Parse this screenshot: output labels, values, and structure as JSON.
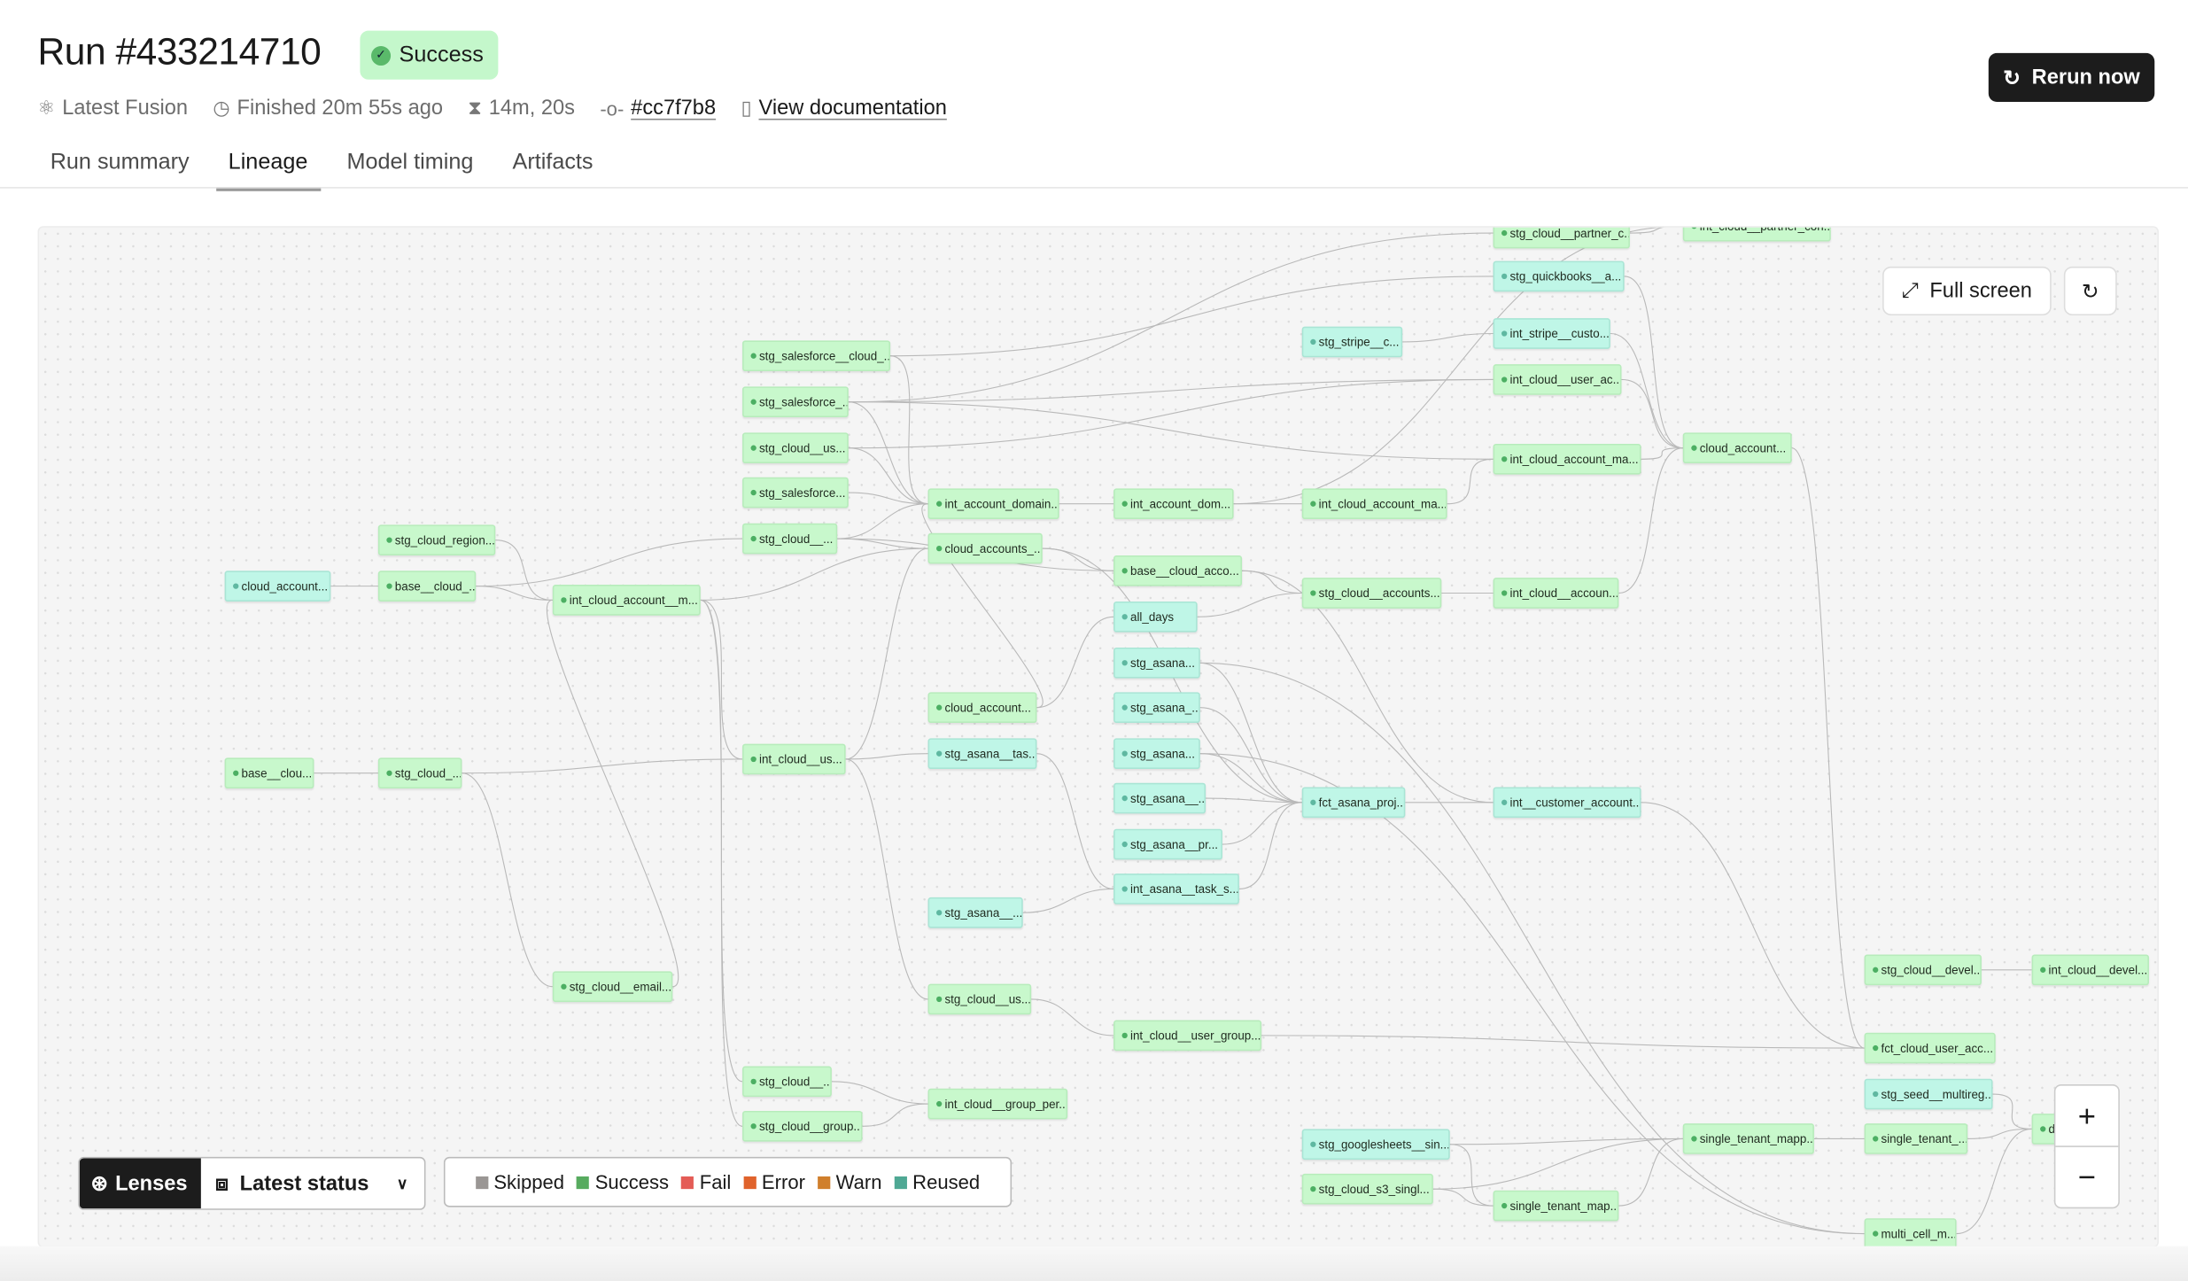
{
  "header": {
    "title": "Run #433214710",
    "status": "Success",
    "meta": {
      "environment": "Latest Fusion",
      "finished": "Finished 20m 55s ago",
      "duration": "14m, 20s",
      "commit": "#cc7f7b8",
      "docs": "View documentation"
    },
    "rerun_label": "Rerun now"
  },
  "tabs": [
    {
      "label": "Run summary",
      "active": false
    },
    {
      "label": "Lineage",
      "active": true
    },
    {
      "label": "Model timing",
      "active": false
    },
    {
      "label": "Artifacts",
      "active": false
    }
  ],
  "graph": {
    "fullscreen_label": "Full screen",
    "nodes": [
      {
        "id": 1,
        "label": "cloud_account...",
        "kind": "teal"
      },
      {
        "id": 2,
        "label": "stg_cloud_region...",
        "kind": "green"
      },
      {
        "id": 3,
        "label": "base__cloud_...",
        "kind": "green"
      },
      {
        "id": 4,
        "label": "int_cloud_account__m...",
        "kind": "green"
      },
      {
        "id": 5,
        "label": "base__clou...",
        "kind": "green"
      },
      {
        "id": 6,
        "label": "stg_cloud_...",
        "kind": "green"
      },
      {
        "id": 7,
        "label": "stg_cloud__email...",
        "kind": "green"
      },
      {
        "id": 8,
        "label": "stg_salesforce__cloud_...",
        "kind": "green"
      },
      {
        "id": 9,
        "label": "stg_salesforce_...",
        "kind": "green"
      },
      {
        "id": 10,
        "label": "stg_cloud__us...",
        "kind": "green"
      },
      {
        "id": 11,
        "label": "stg_salesforce...",
        "kind": "green"
      },
      {
        "id": 12,
        "label": "stg_cloud__...",
        "kind": "green"
      },
      {
        "id": 13,
        "label": "int_cloud__us...",
        "kind": "green"
      },
      {
        "id": 14,
        "label": "stg_cloud__...",
        "kind": "green"
      },
      {
        "id": 15,
        "label": "stg_cloud__group...",
        "kind": "green"
      },
      {
        "id": 16,
        "label": "int_account_domain...",
        "kind": "green"
      },
      {
        "id": 17,
        "label": "cloud_accounts_...",
        "kind": "green"
      },
      {
        "id": 18,
        "label": "cloud_account...",
        "kind": "green"
      },
      {
        "id": 19,
        "label": "stg_asana__tas...",
        "kind": "teal"
      },
      {
        "id": 20,
        "label": "stg_asana__...",
        "kind": "teal"
      },
      {
        "id": 21,
        "label": "stg_cloud__us...",
        "kind": "green"
      },
      {
        "id": 22,
        "label": "int_cloud__group_per...",
        "kind": "green"
      },
      {
        "id": 23,
        "label": "int_account_dom...",
        "kind": "green"
      },
      {
        "id": 24,
        "label": "base__cloud_acco...",
        "kind": "green"
      },
      {
        "id": 25,
        "label": "all_days",
        "kind": "teal"
      },
      {
        "id": 26,
        "label": "stg_asana...",
        "kind": "teal"
      },
      {
        "id": 27,
        "label": "stg_asana_...",
        "kind": "teal"
      },
      {
        "id": 28,
        "label": "stg_asana...",
        "kind": "teal"
      },
      {
        "id": 29,
        "label": "stg_asana__...",
        "kind": "teal"
      },
      {
        "id": 30,
        "label": "stg_asana__pr...",
        "kind": "teal"
      },
      {
        "id": 31,
        "label": "int_asana__task_s...",
        "kind": "teal"
      },
      {
        "id": 32,
        "label": "int_cloud__user_group...",
        "kind": "green"
      },
      {
        "id": 33,
        "label": "stg_stripe__c...",
        "kind": "teal"
      },
      {
        "id": 34,
        "label": "int_cloud_account_ma...",
        "kind": "green"
      },
      {
        "id": 35,
        "label": "stg_cloud__accounts...",
        "kind": "green"
      },
      {
        "id": 36,
        "label": "fct_asana_proj...",
        "kind": "teal"
      },
      {
        "id": 37,
        "label": "stg_googlesheets__sin...",
        "kind": "teal"
      },
      {
        "id": 38,
        "label": "stg_cloud_s3_singl...",
        "kind": "green"
      },
      {
        "id": 39,
        "label": "stg_cloud__partner_c...",
        "kind": "green"
      },
      {
        "id": 40,
        "label": "stg_quickbooks__a...",
        "kind": "teal"
      },
      {
        "id": 41,
        "label": "int_stripe__custo...",
        "kind": "teal"
      },
      {
        "id": 42,
        "label": "int_cloud__user_ac...",
        "kind": "green"
      },
      {
        "id": 43,
        "label": "int_cloud_account_ma...",
        "kind": "green"
      },
      {
        "id": 44,
        "label": "int_cloud__accoun...",
        "kind": "green"
      },
      {
        "id": 45,
        "label": "int__customer_account...",
        "kind": "teal"
      },
      {
        "id": 46,
        "label": "single_tenant_map...",
        "kind": "green"
      },
      {
        "id": 47,
        "label": "int_cloud__partner_con...",
        "kind": "green"
      },
      {
        "id": 48,
        "label": "cloud_account...",
        "kind": "green"
      },
      {
        "id": 49,
        "label": "single_tenant_mapp...",
        "kind": "green"
      },
      {
        "id": 50,
        "label": "stg_cloud__devel...",
        "kind": "green"
      },
      {
        "id": 51,
        "label": "int_cloud__devel...",
        "kind": "green"
      },
      {
        "id": 52,
        "label": "fct_cloud_user_acc...",
        "kind": "green"
      },
      {
        "id": 53,
        "label": "stg_seed__multireg...",
        "kind": "teal"
      },
      {
        "id": 54,
        "label": "single_tenant_...",
        "kind": "green"
      },
      {
        "id": 55,
        "label": "multi_cell_m...",
        "kind": "green"
      },
      {
        "id": 56,
        "label": "d...",
        "kind": "green"
      }
    ],
    "edges": [
      [
        1,
        3
      ],
      [
        3,
        4
      ],
      [
        2,
        4
      ],
      [
        3,
        12
      ],
      [
        4,
        17
      ],
      [
        4,
        13
      ],
      [
        4,
        14
      ],
      [
        4,
        15
      ],
      [
        5,
        6
      ],
      [
        6,
        13
      ],
      [
        6,
        7
      ],
      [
        7,
        4
      ],
      [
        8,
        16
      ],
      [
        8,
        40
      ],
      [
        9,
        16
      ],
      [
        9,
        42
      ],
      [
        9,
        43
      ],
      [
        9,
        39
      ],
      [
        10,
        16
      ],
      [
        10,
        42
      ],
      [
        11,
        16
      ],
      [
        12,
        16
      ],
      [
        12,
        17
      ],
      [
        12,
        24
      ],
      [
        13,
        17
      ],
      [
        13,
        19
      ],
      [
        13,
        21
      ],
      [
        16,
        23
      ],
      [
        17,
        24
      ],
      [
        17,
        36
      ],
      [
        18,
        16
      ],
      [
        18,
        25
      ],
      [
        19,
        31
      ],
      [
        20,
        31
      ],
      [
        21,
        32
      ],
      [
        14,
        22
      ],
      [
        15,
        22
      ],
      [
        23,
        34
      ],
      [
        23,
        47
      ],
      [
        24,
        35
      ],
      [
        24,
        45
      ],
      [
        25,
        35
      ],
      [
        26,
        36
      ],
      [
        27,
        36
      ],
      [
        28,
        36
      ],
      [
        29,
        36
      ],
      [
        30,
        36
      ],
      [
        31,
        36
      ],
      [
        32,
        52
      ],
      [
        33,
        41
      ],
      [
        34,
        43
      ],
      [
        35,
        44
      ],
      [
        36,
        45
      ],
      [
        37,
        49
      ],
      [
        38,
        49
      ],
      [
        38,
        46
      ],
      [
        37,
        46
      ],
      [
        46,
        49
      ],
      [
        49,
        54
      ],
      [
        50,
        51
      ],
      [
        53,
        56
      ],
      [
        54,
        56
      ],
      [
        55,
        56
      ],
      [
        41,
        48
      ],
      [
        42,
        48
      ],
      [
        43,
        48
      ],
      [
        44,
        48
      ],
      [
        40,
        48
      ],
      [
        39,
        47
      ],
      [
        48,
        52
      ],
      [
        45,
        52
      ],
      [
        26,
        55
      ],
      [
        28,
        55
      ]
    ]
  },
  "lenses": {
    "label": "Lenses",
    "selected": "Latest status"
  },
  "legend": [
    {
      "label": "Skipped",
      "color": "#9a9694"
    },
    {
      "label": "Success",
      "color": "#57ab5f"
    },
    {
      "label": "Fail",
      "color": "#e45c56"
    },
    {
      "label": "Error",
      "color": "#e0632c"
    },
    {
      "label": "Warn",
      "color": "#d07f2c"
    },
    {
      "label": "Reused",
      "color": "#4fa894"
    }
  ],
  "zoom": {
    "in": "+",
    "out": "−"
  }
}
